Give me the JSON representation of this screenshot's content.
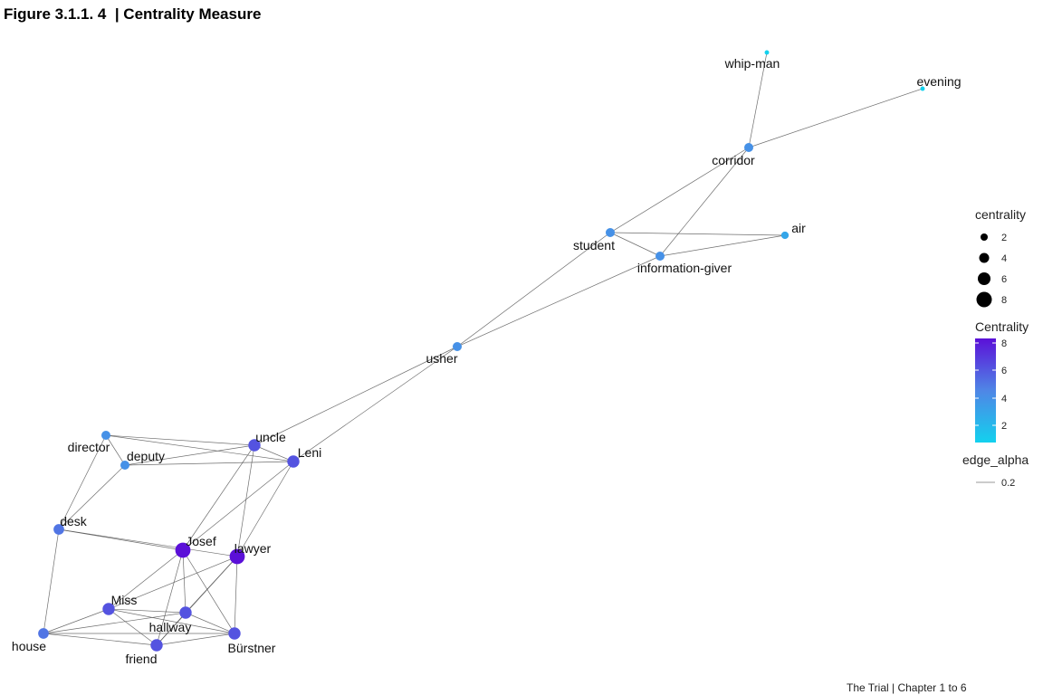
{
  "figure_title": "Figure 3.1.1. 4  | Centrality Measure",
  "caption": "The Trial | Chapter 1 to 6",
  "colors": {
    "low": "#13d1ee",
    "mid": "#4f86e6",
    "high": "#5b10d8",
    "edge": "#555555"
  },
  "legend": {
    "size_title": "centrality",
    "size_entries": [
      "2",
      "4",
      "6",
      "8"
    ],
    "color_title": "Centrality",
    "color_ticks": [
      "8",
      "6",
      "4",
      "2"
    ],
    "edge_title": "edge_alpha",
    "edge_value": "0.2"
  },
  "nodes": [
    {
      "id": "whip-man",
      "label": "whip-man",
      "centrality": 1
    },
    {
      "id": "evening",
      "label": "evening",
      "centrality": 1
    },
    {
      "id": "corridor",
      "label": "corridor",
      "centrality": 4
    },
    {
      "id": "air",
      "label": "air",
      "centrality": 3
    },
    {
      "id": "student",
      "label": "student",
      "centrality": 4
    },
    {
      "id": "information-giver",
      "label": "information-giver",
      "centrality": 4
    },
    {
      "id": "usher",
      "label": "usher",
      "centrality": 4
    },
    {
      "id": "director",
      "label": "director",
      "centrality": 4
    },
    {
      "id": "deputy",
      "label": "deputy",
      "centrality": 4
    },
    {
      "id": "uncle",
      "label": "uncle",
      "centrality": 6
    },
    {
      "id": "Leni",
      "label": "Leni",
      "centrality": 6
    },
    {
      "id": "desk",
      "label": "desk",
      "centrality": 5
    },
    {
      "id": "Josef",
      "label": "Josef",
      "centrality": 8
    },
    {
      "id": "lawyer",
      "label": "lawyer",
      "centrality": 8
    },
    {
      "id": "Miss",
      "label": "Miss",
      "centrality": 6
    },
    {
      "id": "hallway",
      "label": "hallway",
      "centrality": 6
    },
    {
      "id": "house",
      "label": "house",
      "centrality": 5
    },
    {
      "id": "friend",
      "label": "friend",
      "centrality": 6
    },
    {
      "id": "Bürstner",
      "label": "Bürstner",
      "centrality": 6
    }
  ],
  "edges": [
    [
      "whip-man",
      "corridor"
    ],
    [
      "evening",
      "corridor"
    ],
    [
      "corridor",
      "student"
    ],
    [
      "corridor",
      "information-giver"
    ],
    [
      "student",
      "air"
    ],
    [
      "student",
      "information-giver"
    ],
    [
      "information-giver",
      "air"
    ],
    [
      "student",
      "usher"
    ],
    [
      "information-giver",
      "usher"
    ],
    [
      "usher",
      "uncle"
    ],
    [
      "usher",
      "Leni"
    ],
    [
      "director",
      "uncle"
    ],
    [
      "director",
      "Leni"
    ],
    [
      "director",
      "deputy"
    ],
    [
      "director",
      "desk"
    ],
    [
      "deputy",
      "uncle"
    ],
    [
      "deputy",
      "Leni"
    ],
    [
      "deputy",
      "desk"
    ],
    [
      "uncle",
      "Leni"
    ],
    [
      "uncle",
      "Josef"
    ],
    [
      "uncle",
      "lawyer"
    ],
    [
      "Leni",
      "Josef"
    ],
    [
      "Leni",
      "lawyer"
    ],
    [
      "desk",
      "Josef"
    ],
    [
      "desk",
      "lawyer"
    ],
    [
      "desk",
      "house"
    ],
    [
      "Josef",
      "Miss"
    ],
    [
      "Josef",
      "hallway"
    ],
    [
      "Josef",
      "friend"
    ],
    [
      "Josef",
      "Bürstner"
    ],
    [
      "lawyer",
      "Miss"
    ],
    [
      "lawyer",
      "hallway"
    ],
    [
      "lawyer",
      "friend"
    ],
    [
      "lawyer",
      "Bürstner"
    ],
    [
      "Miss",
      "hallway"
    ],
    [
      "Miss",
      "house"
    ],
    [
      "Miss",
      "friend"
    ],
    [
      "Miss",
      "Bürstner"
    ],
    [
      "hallway",
      "house"
    ],
    [
      "hallway",
      "friend"
    ],
    [
      "hallway",
      "Bürstner"
    ],
    [
      "house",
      "friend"
    ],
    [
      "house",
      "Bürstner"
    ],
    [
      "friend",
      "Bürstner"
    ]
  ]
}
